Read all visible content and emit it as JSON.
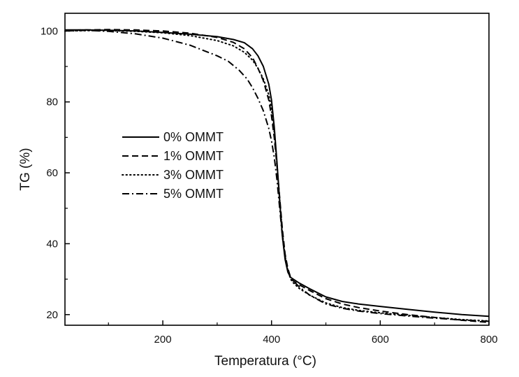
{
  "chart_data": {
    "type": "line",
    "title": "",
    "xlabel": "Temperatura (°C)",
    "ylabel": "TG (%)",
    "xlim": [
      20,
      800
    ],
    "ylim": [
      17,
      105
    ],
    "xticks": [
      200,
      400,
      600,
      800
    ],
    "yticks": [
      20,
      40,
      60,
      80,
      100
    ],
    "grid": false,
    "legend_position": "center-left",
    "series": [
      {
        "name": "0% OMMT",
        "style": "solid",
        "x": [
          20,
          60,
          100,
          150,
          200,
          250,
          300,
          330,
          350,
          365,
          375,
          385,
          395,
          400,
          405,
          410,
          415,
          420,
          425,
          430,
          435,
          440,
          450,
          470,
          500,
          530,
          560,
          600,
          650,
          700,
          750,
          800
        ],
        "y": [
          100.3,
          100.3,
          100.2,
          100.0,
          99.6,
          99.1,
          98.4,
          97.6,
          96.7,
          95.0,
          93.0,
          90.0,
          85.0,
          80.5,
          73.0,
          63.0,
          52.0,
          42.0,
          35.5,
          32.0,
          30.5,
          30.0,
          29.0,
          27.3,
          25.0,
          23.7,
          23.0,
          22.3,
          21.5,
          20.7,
          20.0,
          19.5
        ]
      },
      {
        "name": "1% OMMT",
        "style": "dashed",
        "x": [
          20,
          60,
          100,
          150,
          200,
          250,
          300,
          330,
          350,
          365,
          375,
          385,
          395,
          400,
          405,
          410,
          415,
          420,
          425,
          430,
          435,
          440,
          450,
          470,
          500,
          530,
          560,
          600,
          650,
          700,
          750,
          800
        ],
        "y": [
          100.2,
          100.3,
          100.4,
          100.3,
          100.0,
          99.4,
          98.2,
          96.8,
          95.0,
          92.5,
          89.5,
          86.0,
          80.5,
          76.0,
          70.0,
          62.0,
          53.0,
          44.0,
          37.0,
          33.0,
          30.5,
          29.5,
          28.5,
          26.8,
          24.5,
          23.0,
          22.0,
          21.0,
          20.0,
          19.2,
          18.4,
          17.8
        ]
      },
      {
        "name": "3% OMMT",
        "style": "dotted",
        "x": [
          20,
          60,
          100,
          150,
          200,
          250,
          300,
          330,
          350,
          365,
          375,
          385,
          395,
          400,
          405,
          410,
          415,
          420,
          425,
          430,
          435,
          440,
          450,
          470,
          500,
          530,
          560,
          600,
          650,
          700,
          750,
          800
        ],
        "y": [
          100.0,
          100.1,
          100.1,
          99.9,
          99.5,
          98.7,
          97.3,
          95.8,
          94.0,
          91.8,
          89.5,
          86.5,
          82.0,
          78.0,
          71.5,
          62.5,
          52.5,
          43.0,
          36.5,
          32.5,
          30.0,
          29.0,
          27.5,
          25.5,
          23.3,
          22.0,
          21.2,
          20.5,
          19.8,
          19.2,
          18.6,
          18.2
        ]
      },
      {
        "name": "5% OMMT",
        "style": "dash-dot",
        "x": [
          20,
          60,
          100,
          150,
          200,
          250,
          300,
          320,
          340,
          355,
          365,
          375,
          385,
          395,
          400,
          405,
          410,
          415,
          420,
          425,
          430,
          435,
          440,
          450,
          470,
          500,
          530,
          560,
          600,
          650,
          700,
          750,
          800
        ],
        "y": [
          100.0,
          100.2,
          99.9,
          99.2,
          98.0,
          96.0,
          93.0,
          91.5,
          89.0,
          86.5,
          84.0,
          81.0,
          77.5,
          72.5,
          69.0,
          64.5,
          58.0,
          50.0,
          42.0,
          36.0,
          32.5,
          30.5,
          29.5,
          28.0,
          25.5,
          23.0,
          21.8,
          21.0,
          20.3,
          19.6,
          19.0,
          18.5,
          18.1
        ]
      }
    ]
  }
}
